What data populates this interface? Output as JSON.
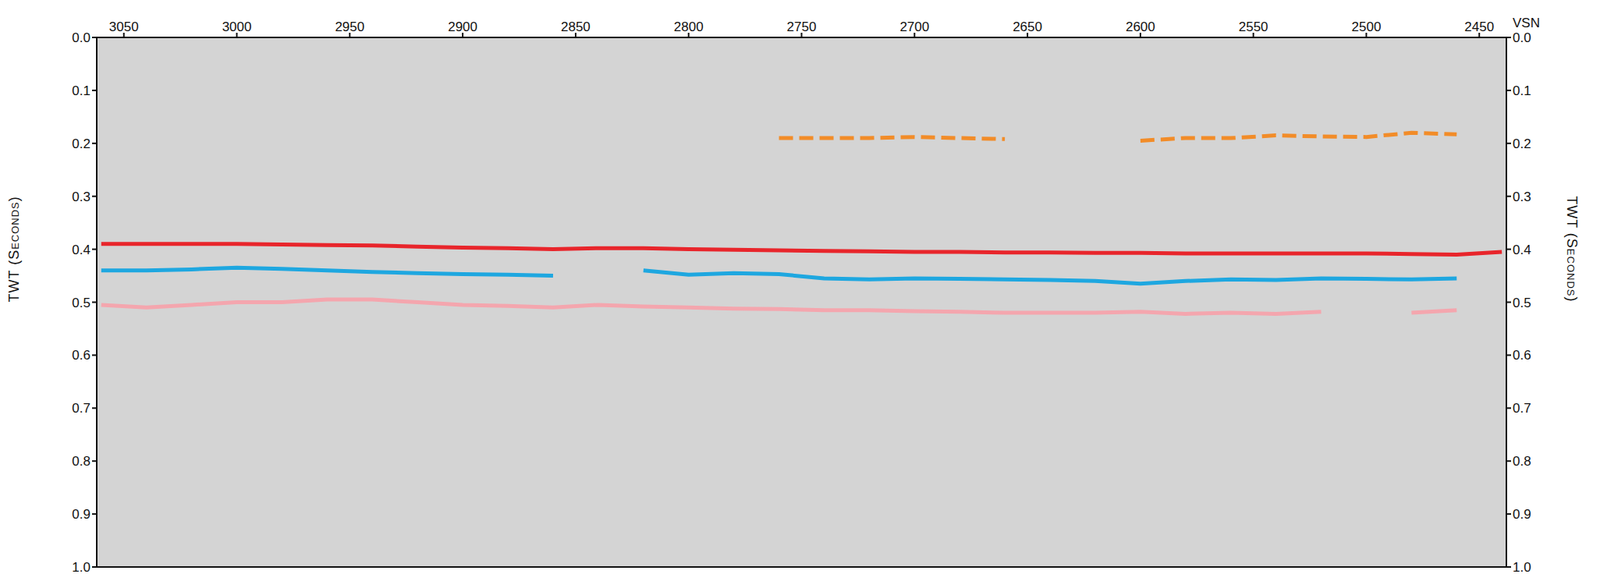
{
  "chart_data": {
    "type": "line",
    "x_label": "VSN",
    "y_label": "TWT (Seconds)",
    "x": [
      3060,
      3040,
      3020,
      3000,
      2980,
      2960,
      2940,
      2920,
      2900,
      2880,
      2860,
      2840,
      2820,
      2800,
      2780,
      2760,
      2740,
      2720,
      2700,
      2680,
      2660,
      2640,
      2620,
      2600,
      2580,
      2560,
      2540,
      2520,
      2500,
      2480,
      2460,
      2440
    ],
    "xlim": [
      3062,
      2438
    ],
    "xticks": [
      3050,
      3000,
      2950,
      2900,
      2850,
      2800,
      2750,
      2700,
      2650,
      2600,
      2550,
      2500,
      2450
    ],
    "ylim": [
      0,
      1
    ],
    "yticks": [
      {
        "value": 0,
        "label": "0.0"
      },
      0.1,
      0.2,
      0.3,
      0.4,
      0.5,
      0.6,
      0.7,
      0.8,
      0.9,
      {
        "value": 1,
        "label": "1.0"
      }
    ],
    "series": [
      {
        "color": "#f28c28",
        "line_style": "dashed",
        "values": [
          null,
          null,
          null,
          null,
          null,
          null,
          null,
          null,
          null,
          null,
          null,
          null,
          null,
          null,
          null,
          0.19,
          0.19,
          0.19,
          0.188,
          0.19,
          0.192,
          null,
          null,
          0.195,
          0.19,
          0.19,
          0.185,
          0.187,
          0.188,
          0.18,
          0.183,
          null
        ]
      },
      {
        "color": "#e8252b",
        "line_style": "solid",
        "values": [
          0.39,
          0.39,
          0.39,
          0.39,
          0.391,
          0.392,
          0.393,
          0.395,
          0.397,
          0.398,
          0.4,
          0.398,
          0.398,
          0.4,
          0.401,
          0.402,
          0.403,
          0.404,
          0.405,
          0.405,
          0.406,
          0.406,
          0.407,
          0.407,
          0.408,
          0.408,
          0.408,
          0.408,
          0.408,
          0.409,
          0.41,
          0.405
        ]
      },
      {
        "color": "#1ea7e0",
        "line_style": "solid",
        "values": [
          0.44,
          0.44,
          0.438,
          0.435,
          0.437,
          0.44,
          0.443,
          0.445,
          0.447,
          0.448,
          0.45,
          null,
          0.44,
          0.448,
          0.445,
          0.447,
          0.455,
          0.457,
          0.455,
          0.456,
          0.457,
          0.458,
          0.46,
          0.465,
          0.46,
          0.457,
          0.458,
          0.455,
          0.456,
          0.457,
          0.455,
          null
        ]
      },
      {
        "color": "#f4a6ae",
        "line_style": "solid",
        "values": [
          0.505,
          0.51,
          0.505,
          0.5,
          0.5,
          0.495,
          0.495,
          0.5,
          0.505,
          0.507,
          0.51,
          0.505,
          0.508,
          0.51,
          0.512,
          0.513,
          0.515,
          0.515,
          0.517,
          0.518,
          0.52,
          0.52,
          0.52,
          0.518,
          0.522,
          0.52,
          0.522,
          0.518,
          null,
          0.52,
          0.515,
          null
        ]
      }
    ],
    "legend": false
  }
}
